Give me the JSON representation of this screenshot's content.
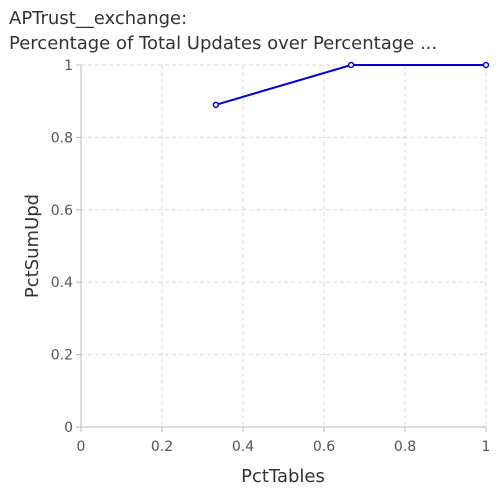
{
  "chart_data": {
    "type": "line",
    "title_line1": "APTrust__exchange:",
    "title_line2": "Percentage of Total Updates over Percentage ...",
    "xlabel": "PctTables",
    "ylabel": "PctSumUpd",
    "xlim": [
      0,
      1
    ],
    "ylim": [
      0,
      1
    ],
    "x_ticks": [
      "0",
      "0.2",
      "0.4",
      "0.6",
      "0.8",
      "1"
    ],
    "y_ticks": [
      "0",
      "0.2",
      "0.4",
      "0.6",
      "0.8",
      "1"
    ],
    "grid": true,
    "series": [
      {
        "color": "#0000dd",
        "points": [
          {
            "x": 0.333,
            "y": 0.89
          },
          {
            "x": 0.667,
            "y": 1.0
          },
          {
            "x": 1.0,
            "y": 1.0
          }
        ]
      }
    ]
  }
}
